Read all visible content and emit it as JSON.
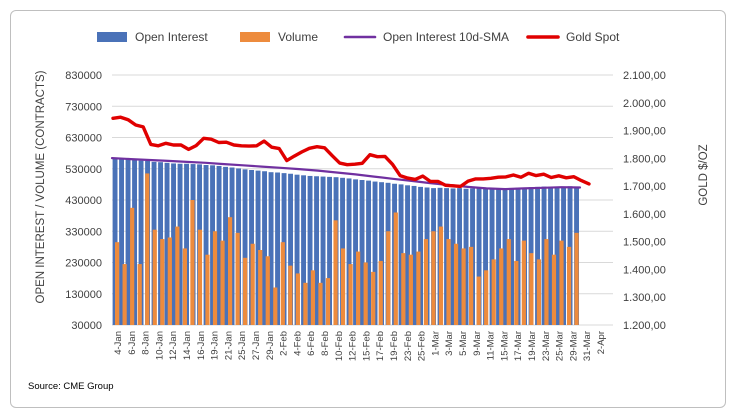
{
  "chart_data": {
    "type": "bar",
    "source": "Source: CME Group",
    "y_left_title": "OPEN INTEREST / VOLUME (CONTRACTS)",
    "y_right_title": "GOLD $/OZ",
    "ylim_left": [
      30000,
      830000
    ],
    "ylim_right": [
      1200,
      2100
    ],
    "left_ticks": [
      "830000",
      "730000",
      "630000",
      "530000",
      "430000",
      "330000",
      "230000",
      "130000",
      "30000"
    ],
    "left_tick_values": [
      830000,
      730000,
      630000,
      530000,
      430000,
      330000,
      230000,
      130000,
      30000
    ],
    "right_ticks": [
      "2.100,00",
      "2.000,00",
      "1.900,00",
      "1.800,00",
      "1.700,00",
      "1.600,00",
      "1.500,00",
      "1.400,00",
      "1.300,00",
      "1.200,00"
    ],
    "right_tick_values": [
      2100,
      2000,
      1900,
      1800,
      1700,
      1600,
      1500,
      1400,
      1300,
      1200
    ],
    "x_tick_labels": [
      "4-Jan",
      "6-Jan",
      "8-Jan",
      "10-Jan",
      "12-Jan",
      "14-Jan",
      "16-Jan",
      "19-Jan",
      "21-Jan",
      "25-Jan",
      "27-Jan",
      "29-Jan",
      "2-Feb",
      "4-Feb",
      "6-Feb",
      "8-Feb",
      "10-Feb",
      "12-Feb",
      "15-Feb",
      "17-Feb",
      "19-Feb",
      "23-Feb",
      "25-Feb",
      "1-Mar",
      "3-Mar",
      "5-Mar",
      "9-Mar",
      "11-Mar",
      "15-Mar",
      "17-Mar",
      "19-Mar",
      "23-Mar",
      "25-Mar",
      "29-Mar",
      "31-Mar",
      "2-Apr"
    ],
    "legend": [
      {
        "name": "Open Interest",
        "color": "#4a72b8",
        "kind": "bar"
      },
      {
        "name": "Volume",
        "color": "#ed8b3d",
        "kind": "bar"
      },
      {
        "name": "Open Interest 10d-SMA",
        "color": "#7030a0",
        "kind": "line"
      },
      {
        "name": "Gold Spot",
        "color": "#e00000",
        "kind": "line"
      }
    ],
    "series": [
      {
        "name": "Open Interest",
        "values": [
          563000,
          562000,
          562000,
          558000,
          556000,
          555000,
          552000,
          551000,
          549000,
          547000,
          546000,
          546000,
          545000,
          544000,
          542000,
          541000,
          539000,
          536000,
          534000,
          531000,
          528000,
          526000,
          524000,
          522000,
          519000,
          518000,
          516000,
          514000,
          511000,
          509000,
          507000,
          506000,
          505000,
          504000,
          503000,
          501000,
          499000,
          496000,
          494000,
          492000,
          489000,
          487000,
          485000,
          482000,
          480000,
          477000,
          475000,
          472000,
          470000,
          468000,
          469000,
          468000,
          467000,
          468000,
          466000,
          467000,
          468000,
          469000,
          467000,
          466000,
          467000,
          468000,
          469000,
          470000,
          471000,
          472000,
          473000,
          472000,
          470000,
          471000,
          474000,
          470000
        ]
      },
      {
        "name": "Volume",
        "values": [
          295000,
          225000,
          405000,
          225000,
          515000,
          335000,
          305000,
          310000,
          345000,
          275000,
          430000,
          335000,
          255000,
          330000,
          300000,
          375000,
          325000,
          245000,
          290000,
          270000,
          250000,
          150000,
          295000,
          220000,
          195000,
          165000,
          205000,
          165000,
          180000,
          365000,
          275000,
          225000,
          265000,
          230000,
          200000,
          235000,
          330000,
          390000,
          260000,
          255000,
          265000,
          305000,
          330000,
          345000,
          305000,
          290000,
          275000,
          280000,
          185000,
          205000,
          240000,
          275000,
          305000,
          235000,
          300000,
          260000,
          240000,
          305000,
          255000,
          300000,
          280000,
          325000
        ]
      },
      {
        "name": "Open Interest 10d-SMA",
        "values": [
          564000,
          561000,
          558000,
          555000,
          552000,
          549000,
          545000,
          541000,
          537000,
          533000,
          529000,
          524000,
          518000,
          512000,
          505000,
          498000,
          491000,
          484000,
          478000,
          472000,
          467000,
          465000,
          467000,
          469000,
          471000,
          470000
        ]
      },
      {
        "name": "Gold Spot",
        "values": [
          1944,
          1948,
          1939,
          1920,
          1913,
          1850,
          1845,
          1854,
          1848,
          1848,
          1832,
          1846,
          1872,
          1869,
          1857,
          1858,
          1848,
          1845,
          1844,
          1845,
          1862,
          1840,
          1835,
          1792,
          1808,
          1823,
          1836,
          1842,
          1838,
          1810,
          1783,
          1777,
          1779,
          1782,
          1813,
          1806,
          1807,
          1778,
          1738,
          1729,
          1724,
          1736,
          1717,
          1717,
          1703,
          1701,
          1699,
          1718,
          1726,
          1726,
          1728,
          1732,
          1733,
          1740,
          1732,
          1746,
          1738,
          1743,
          1731,
          1737,
          1730,
          1734,
          1720,
          1708
        ]
      }
    ]
  }
}
